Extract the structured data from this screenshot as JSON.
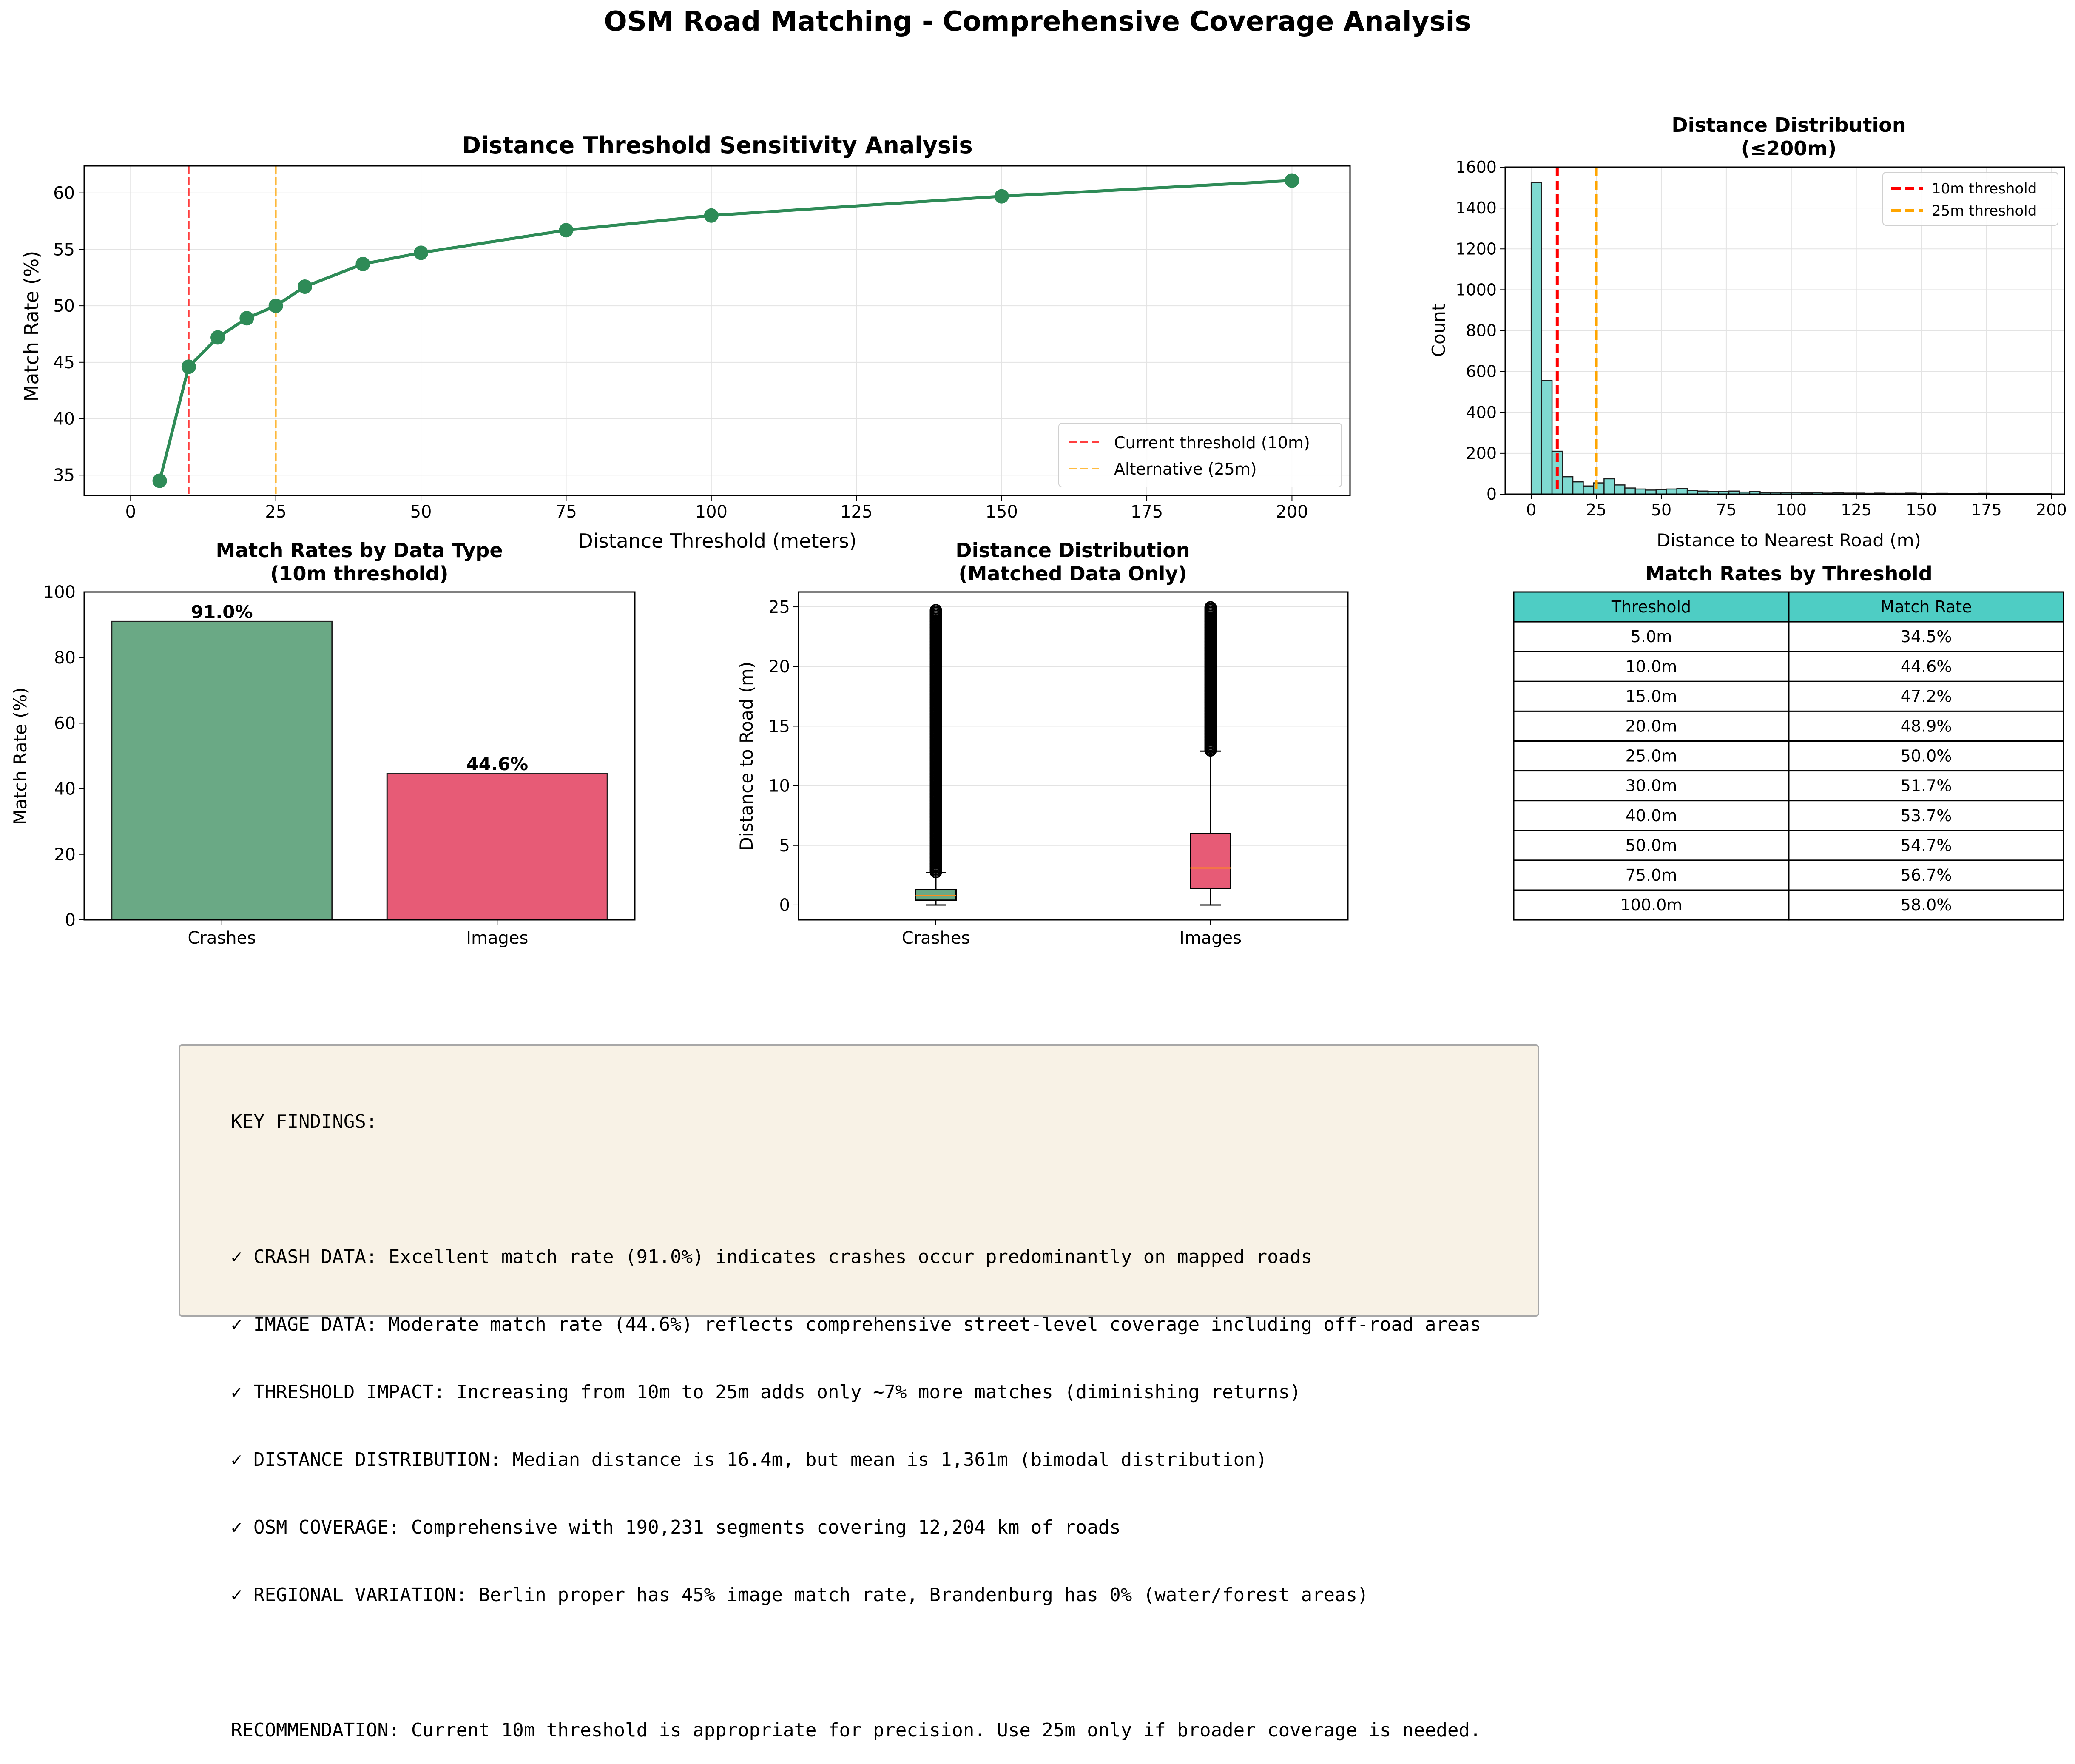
{
  "suptitle": "OSM Road Matching - Comprehensive Coverage Analysis",
  "colors": {
    "line": "#2e8b57",
    "crashes": "#6aa985",
    "images": "#e75b76",
    "hist": "#7fdad1",
    "table_header": "#4ecdc4",
    "red": "#ff0000",
    "orange": "#ffa500",
    "findings_bg": "#f8f2e6"
  },
  "chart_data": [
    {
      "type": "line",
      "title": "Distance Threshold Sensitivity Analysis",
      "xlabel": "Distance Threshold (meters)",
      "ylabel": "Match Rate (%)",
      "xlim": [
        -8,
        210
      ],
      "ylim": [
        33.2,
        62.4
      ],
      "xticks": [
        0,
        25,
        50,
        75,
        100,
        125,
        150,
        175,
        200
      ],
      "yticks": [
        35,
        40,
        45,
        50,
        55,
        60
      ],
      "grid": true,
      "legend_position": "lower right",
      "x": [
        5,
        10,
        15,
        20,
        25,
        30,
        40,
        50,
        75,
        100,
        150,
        200
      ],
      "y": [
        34.5,
        44.6,
        47.2,
        48.9,
        50.0,
        51.7,
        53.7,
        54.7,
        56.7,
        58.0,
        59.7,
        61.1
      ],
      "vlines": [
        {
          "x": 10,
          "label": "Current threshold (10m)",
          "color": "#ff0000"
        },
        {
          "x": 25,
          "label": "Alternative (25m)",
          "color": "#ffa500"
        }
      ]
    },
    {
      "type": "bar",
      "title": "Distance Distribution",
      "subtitle": "(≤200m)",
      "xlabel": "Distance to Nearest Road (m)",
      "ylabel": "Count",
      "xlim": [
        -10,
        205
      ],
      "ylim": [
        0,
        1600
      ],
      "xticks": [
        0,
        25,
        50,
        75,
        100,
        125,
        150,
        175,
        200
      ],
      "yticks": [
        0,
        200,
        400,
        600,
        800,
        1000,
        1200,
        1400,
        1600
      ],
      "grid": true,
      "legend_position": "upper right",
      "bin_width": 4,
      "bin_starts": [
        0,
        4,
        8,
        12,
        16,
        20,
        24,
        28,
        32,
        36,
        40,
        44,
        48,
        52,
        56,
        60,
        64,
        68,
        72,
        76,
        80,
        84,
        88,
        92,
        96,
        100,
        104,
        108,
        112,
        116,
        120,
        124,
        128,
        132,
        136,
        140,
        144,
        148,
        152,
        156,
        160,
        164,
        168,
        172,
        176,
        180,
        184,
        188,
        192,
        196
      ],
      "counts": [
        1525,
        555,
        210,
        85,
        60,
        40,
        55,
        75,
        45,
        30,
        25,
        20,
        22,
        25,
        28,
        18,
        15,
        14,
        12,
        15,
        10,
        12,
        8,
        9,
        7,
        8,
        6,
        7,
        5,
        6,
        5,
        5,
        4,
        5,
        4,
        4,
        5,
        4,
        3,
        4,
        3,
        3,
        3,
        4,
        2,
        3,
        2,
        3,
        2,
        2
      ],
      "vlines": [
        {
          "x": 10,
          "label": "10m threshold",
          "color": "#ff0000"
        },
        {
          "x": 25,
          "label": "25m threshold",
          "color": "#ffa500"
        }
      ]
    },
    {
      "type": "bar",
      "title": "Match Rates by Data Type",
      "subtitle": "(10m threshold)",
      "ylabel": "Match Rate (%)",
      "ylim": [
        0,
        100
      ],
      "yticks": [
        0,
        20,
        40,
        60,
        80,
        100
      ],
      "categories": [
        "Crashes",
        "Images"
      ],
      "values": [
        91.0,
        44.6
      ],
      "value_labels": [
        "91.0%",
        "44.6%"
      ]
    },
    {
      "type": "box",
      "title": "Distance Distribution",
      "subtitle": "(Matched Data Only)",
      "ylabel": "Distance to Road (m)",
      "ylim": [
        -1.25,
        26.25
      ],
      "yticks": [
        0,
        5,
        10,
        15,
        20,
        25
      ],
      "grid": true,
      "categories": [
        "Crashes",
        "Images"
      ],
      "boxes": [
        {
          "whisker_low": 0.0,
          "q1": 0.4,
          "median": 0.8,
          "q3": 1.3,
          "whisker_high": 2.7,
          "outliers_from": 2.7,
          "outliers_to": 24.8
        },
        {
          "whisker_low": 0.0,
          "q1": 1.4,
          "median": 3.1,
          "q3": 6.0,
          "whisker_high": 12.9,
          "outliers_from": 12.9,
          "outliers_to": 25.0
        }
      ]
    },
    {
      "type": "table",
      "title": "Match Rates by Threshold",
      "columns": [
        "Threshold",
        "Match Rate"
      ],
      "rows": [
        [
          "5.0m",
          "34.5%"
        ],
        [
          "10.0m",
          "44.6%"
        ],
        [
          "15.0m",
          "47.2%"
        ],
        [
          "20.0m",
          "48.9%"
        ],
        [
          "25.0m",
          "50.0%"
        ],
        [
          "30.0m",
          "51.7%"
        ],
        [
          "40.0m",
          "53.7%"
        ],
        [
          "50.0m",
          "54.7%"
        ],
        [
          "75.0m",
          "56.7%"
        ],
        [
          "100.0m",
          "58.0%"
        ]
      ]
    }
  ],
  "findings": {
    "heading": "KEY FINDINGS:",
    "items": [
      "✓ CRASH DATA: Excellent match rate (91.0%) indicates crashes occur predominantly on mapped roads",
      "✓ IMAGE DATA: Moderate match rate (44.6%) reflects comprehensive street-level coverage including off-road areas",
      "✓ THRESHOLD IMPACT: Increasing from 10m to 25m adds only ~7% more matches (diminishing returns)",
      "✓ DISTANCE DISTRIBUTION: Median distance is 16.4m, but mean is 1,361m (bimodal distribution)",
      "✓ OSM COVERAGE: Comprehensive with 190,231 segments covering 12,204 km of roads",
      "✓ REGIONAL VARIATION: Berlin proper has 45% image match rate, Brandenburg has 0% (water/forest areas)"
    ],
    "recommendation": "RECOMMENDATION: Current 10m threshold is appropriate for precision. Use 25m only if broader coverage is needed."
  }
}
